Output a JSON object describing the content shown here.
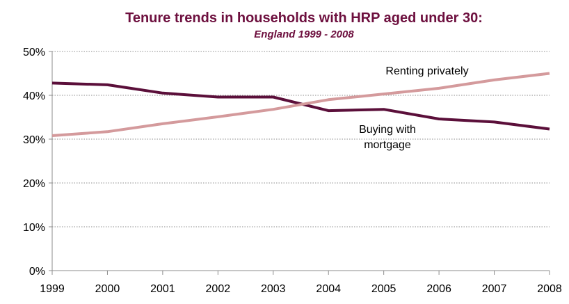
{
  "chart_data": {
    "type": "line",
    "title": "Tenure trends in households  with HRP aged under 30:",
    "subtitle": "England 1999 - 2008",
    "title_color": "#6d0f3e",
    "x": [
      "1999",
      "2000",
      "2001",
      "2002",
      "2003",
      "2004",
      "2005",
      "2006",
      "2007",
      "2008"
    ],
    "ylim": [
      0,
      50
    ],
    "yticks": [
      0,
      10,
      20,
      30,
      40,
      50
    ],
    "ytick_labels": [
      "0%",
      "10%",
      "20%",
      "30%",
      "40%",
      "50%"
    ],
    "grid": true,
    "series": [
      {
        "name": "Buying with mortgage",
        "label_lines": [
          "Buying with",
          "mortgage"
        ],
        "color": "#5b0f3a",
        "values": [
          42.8,
          42.4,
          40.5,
          39.6,
          39.6,
          36.5,
          36.8,
          34.6,
          33.9,
          32.3
        ]
      },
      {
        "name": "Renting privately",
        "label_lines": [
          "Renting privately"
        ],
        "color": "#d49a9c",
        "values": [
          30.8,
          31.7,
          33.5,
          35.1,
          36.8,
          39.0,
          40.3,
          41.6,
          43.5,
          45.0
        ]
      }
    ]
  }
}
